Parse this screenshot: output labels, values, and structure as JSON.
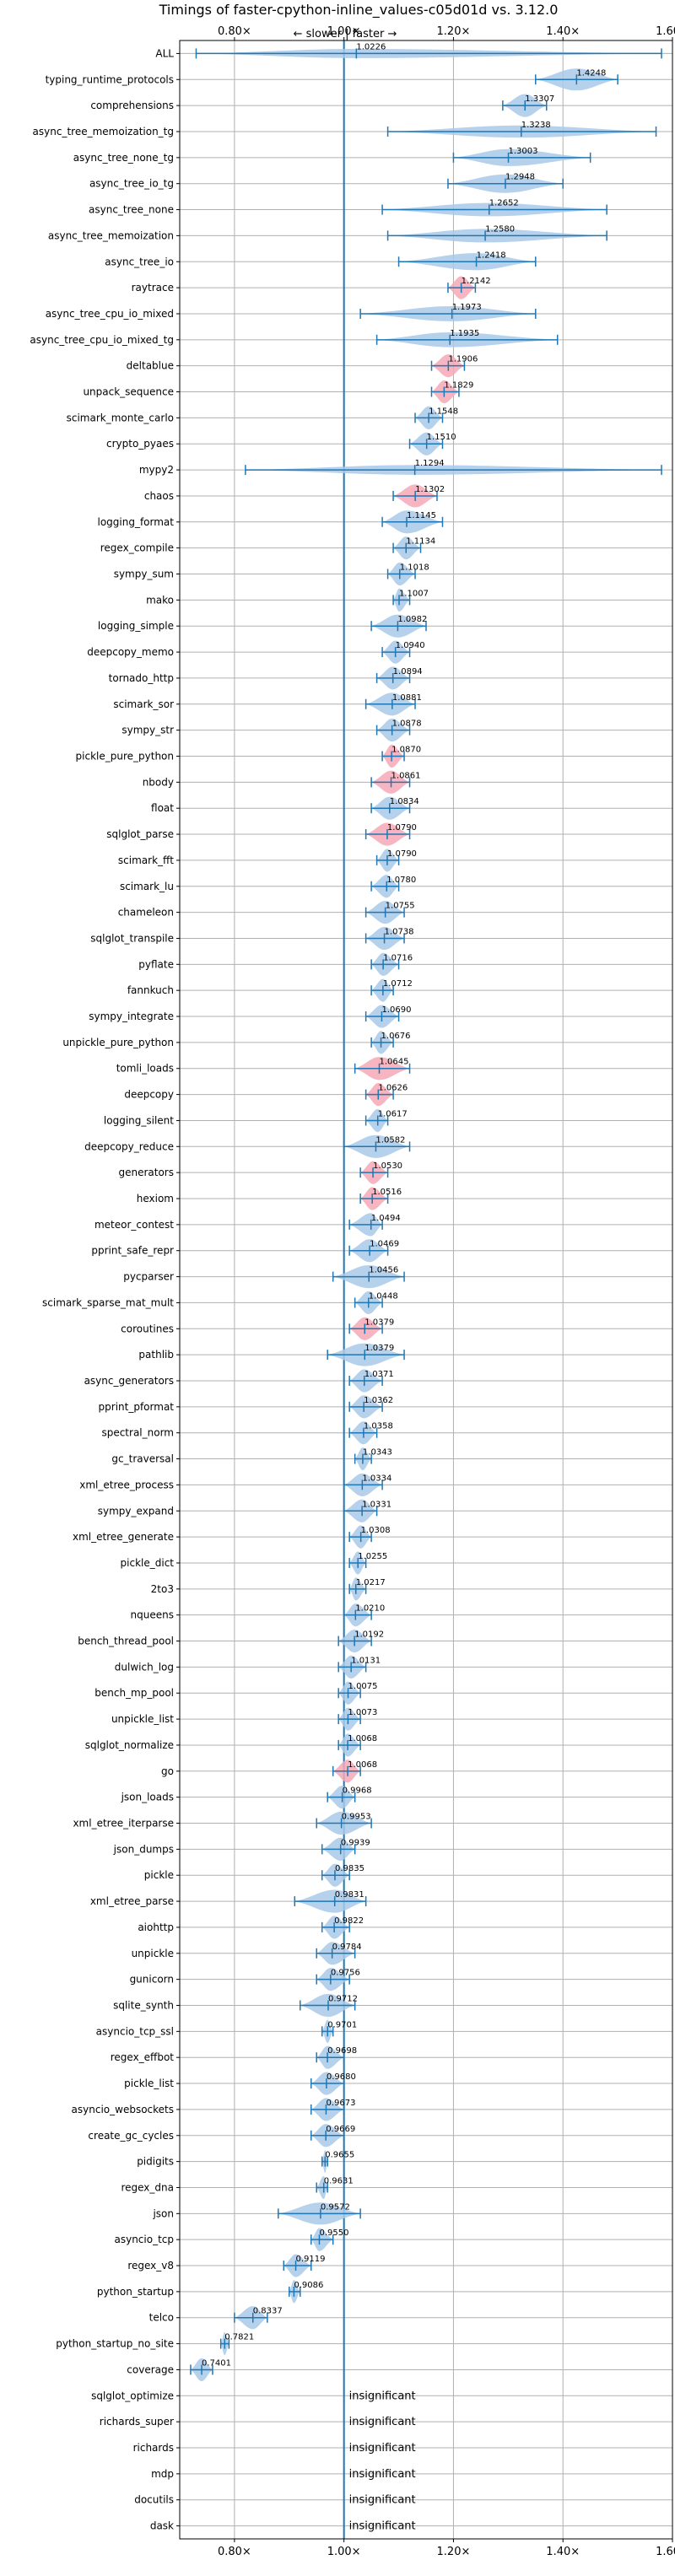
{
  "chart_data": {
    "type": "violin",
    "title": "Timings of faster-cpython-inline_values-c05d01d vs. 3.12.0",
    "direction_label": "← slower | faster →",
    "xlim": [
      0.7,
      1.6
    ],
    "xticks": [
      0.8,
      1.0,
      1.2,
      1.4,
      1.6
    ],
    "xtick_labels": [
      "0.80×",
      "1.00×",
      "1.20×",
      "1.40×",
      "1.60×"
    ],
    "grid": true,
    "reference_line": 1.0,
    "colors": {
      "violin": "#a9c9e8",
      "violin_highlight": "#f6a8b6",
      "whisker": "#1f77b4",
      "reference": "#1f77b4"
    },
    "insignificant_label": "insignificant",
    "benchmarks": [
      {
        "name": "ALL",
        "value": 1.0226,
        "label": "1.0226",
        "min": 0.73,
        "max": 1.58,
        "highlight": false
      },
      {
        "name": "typing_runtime_protocols",
        "value": 1.4248,
        "label": "1.4248",
        "min": 1.35,
        "max": 1.5,
        "highlight": false
      },
      {
        "name": "comprehensions",
        "value": 1.3307,
        "label": "1.3307",
        "min": 1.29,
        "max": 1.37,
        "highlight": false
      },
      {
        "name": "async_tree_memoization_tg",
        "value": 1.3238,
        "label": "1.3238",
        "min": 1.08,
        "max": 1.57,
        "highlight": false
      },
      {
        "name": "async_tree_none_tg",
        "value": 1.3003,
        "label": "1.3003",
        "min": 1.2,
        "max": 1.45,
        "highlight": false
      },
      {
        "name": "async_tree_io_tg",
        "value": 1.2948,
        "label": "1.2948",
        "min": 1.19,
        "max": 1.4,
        "highlight": false
      },
      {
        "name": "async_tree_none",
        "value": 1.2652,
        "label": "1.2652",
        "min": 1.07,
        "max": 1.48,
        "highlight": false
      },
      {
        "name": "async_tree_memoization",
        "value": 1.258,
        "label": "1.2580",
        "min": 1.08,
        "max": 1.48,
        "highlight": false
      },
      {
        "name": "async_tree_io",
        "value": 1.2418,
        "label": "1.2418",
        "min": 1.1,
        "max": 1.35,
        "highlight": false
      },
      {
        "name": "raytrace",
        "value": 1.2142,
        "label": "1.2142",
        "min": 1.19,
        "max": 1.24,
        "highlight": true
      },
      {
        "name": "async_tree_cpu_io_mixed",
        "value": 1.1973,
        "label": "1.1973",
        "min": 1.03,
        "max": 1.35,
        "highlight": false
      },
      {
        "name": "async_tree_cpu_io_mixed_tg",
        "value": 1.1935,
        "label": "1.1935",
        "min": 1.06,
        "max": 1.39,
        "highlight": false
      },
      {
        "name": "deltablue",
        "value": 1.1906,
        "label": "1.1906",
        "min": 1.16,
        "max": 1.22,
        "highlight": true
      },
      {
        "name": "unpack_sequence",
        "value": 1.1829,
        "label": "1.1829",
        "min": 1.16,
        "max": 1.21,
        "highlight": true
      },
      {
        "name": "scimark_monte_carlo",
        "value": 1.1548,
        "label": "1.1548",
        "min": 1.13,
        "max": 1.18,
        "highlight": false
      },
      {
        "name": "crypto_pyaes",
        "value": 1.151,
        "label": "1.1510",
        "min": 1.12,
        "max": 1.18,
        "highlight": false
      },
      {
        "name": "mypy2",
        "value": 1.1294,
        "label": "1.1294",
        "min": 0.82,
        "max": 1.58,
        "highlight": false
      },
      {
        "name": "chaos",
        "value": 1.1302,
        "label": "1.1302",
        "min": 1.09,
        "max": 1.17,
        "highlight": true
      },
      {
        "name": "logging_format",
        "value": 1.1145,
        "label": "1.1145",
        "min": 1.07,
        "max": 1.18,
        "highlight": false
      },
      {
        "name": "regex_compile",
        "value": 1.1134,
        "label": "1.1134",
        "min": 1.09,
        "max": 1.14,
        "highlight": false
      },
      {
        "name": "sympy_sum",
        "value": 1.1018,
        "label": "1.1018",
        "min": 1.08,
        "max": 1.13,
        "highlight": false
      },
      {
        "name": "mako",
        "value": 1.1007,
        "label": "1.1007",
        "min": 1.09,
        "max": 1.12,
        "highlight": false
      },
      {
        "name": "logging_simple",
        "value": 1.0982,
        "label": "1.0982",
        "min": 1.05,
        "max": 1.15,
        "highlight": false
      },
      {
        "name": "deepcopy_memo",
        "value": 1.094,
        "label": "1.0940",
        "min": 1.07,
        "max": 1.12,
        "highlight": false
      },
      {
        "name": "tornado_http",
        "value": 1.0894,
        "label": "1.0894",
        "min": 1.06,
        "max": 1.12,
        "highlight": false
      },
      {
        "name": "scimark_sor",
        "value": 1.0881,
        "label": "1.0881",
        "min": 1.04,
        "max": 1.13,
        "highlight": false
      },
      {
        "name": "sympy_str",
        "value": 1.0878,
        "label": "1.0878",
        "min": 1.06,
        "max": 1.12,
        "highlight": false
      },
      {
        "name": "pickle_pure_python",
        "value": 1.087,
        "label": "1.0870",
        "min": 1.07,
        "max": 1.11,
        "highlight": true
      },
      {
        "name": "nbody",
        "value": 1.0861,
        "label": "1.0861",
        "min": 1.05,
        "max": 1.12,
        "highlight": true
      },
      {
        "name": "float",
        "value": 1.0834,
        "label": "1.0834",
        "min": 1.05,
        "max": 1.12,
        "highlight": false
      },
      {
        "name": "sqlglot_parse",
        "value": 1.079,
        "label": "1.0790",
        "min": 1.04,
        "max": 1.12,
        "highlight": true
      },
      {
        "name": "scimark_fft",
        "value": 1.079,
        "label": "1.0790",
        "min": 1.06,
        "max": 1.1,
        "highlight": false
      },
      {
        "name": "scimark_lu",
        "value": 1.078,
        "label": "1.0780",
        "min": 1.05,
        "max": 1.1,
        "highlight": false
      },
      {
        "name": "chameleon",
        "value": 1.0755,
        "label": "1.0755",
        "min": 1.04,
        "max": 1.11,
        "highlight": false
      },
      {
        "name": "sqlglot_transpile",
        "value": 1.0738,
        "label": "1.0738",
        "min": 1.04,
        "max": 1.11,
        "highlight": false
      },
      {
        "name": "pyflate",
        "value": 1.0716,
        "label": "1.0716",
        "min": 1.05,
        "max": 1.1,
        "highlight": false
      },
      {
        "name": "fannkuch",
        "value": 1.0712,
        "label": "1.0712",
        "min": 1.05,
        "max": 1.09,
        "highlight": false
      },
      {
        "name": "sympy_integrate",
        "value": 1.069,
        "label": "1.0690",
        "min": 1.04,
        "max": 1.1,
        "highlight": false
      },
      {
        "name": "unpickle_pure_python",
        "value": 1.0676,
        "label": "1.0676",
        "min": 1.05,
        "max": 1.09,
        "highlight": false
      },
      {
        "name": "tomli_loads",
        "value": 1.0645,
        "label": "1.0645",
        "min": 1.02,
        "max": 1.12,
        "highlight": true
      },
      {
        "name": "deepcopy",
        "value": 1.0626,
        "label": "1.0626",
        "min": 1.04,
        "max": 1.09,
        "highlight": true
      },
      {
        "name": "logging_silent",
        "value": 1.0617,
        "label": "1.0617",
        "min": 1.04,
        "max": 1.08,
        "highlight": false
      },
      {
        "name": "deepcopy_reduce",
        "value": 1.0582,
        "label": "1.0582",
        "min": 1.0,
        "max": 1.12,
        "highlight": false
      },
      {
        "name": "generators",
        "value": 1.053,
        "label": "1.0530",
        "min": 1.03,
        "max": 1.08,
        "highlight": true
      },
      {
        "name": "hexiom",
        "value": 1.0516,
        "label": "1.0516",
        "min": 1.03,
        "max": 1.08,
        "highlight": true
      },
      {
        "name": "meteor_contest",
        "value": 1.0494,
        "label": "1.0494",
        "min": 1.01,
        "max": 1.07,
        "highlight": false
      },
      {
        "name": "pprint_safe_repr",
        "value": 1.0469,
        "label": "1.0469",
        "min": 1.01,
        "max": 1.08,
        "highlight": false
      },
      {
        "name": "pycparser",
        "value": 1.0456,
        "label": "1.0456",
        "min": 0.98,
        "max": 1.11,
        "highlight": false
      },
      {
        "name": "scimark_sparse_mat_mult",
        "value": 1.0448,
        "label": "1.0448",
        "min": 1.02,
        "max": 1.07,
        "highlight": false
      },
      {
        "name": "coroutines",
        "value": 1.0379,
        "label": "1.0379",
        "min": 1.01,
        "max": 1.07,
        "highlight": true
      },
      {
        "name": "pathlib",
        "value": 1.0379,
        "label": "1.0379",
        "min": 0.97,
        "max": 1.11,
        "highlight": false
      },
      {
        "name": "async_generators",
        "value": 1.0371,
        "label": "1.0371",
        "min": 1.01,
        "max": 1.07,
        "highlight": false
      },
      {
        "name": "pprint_pformat",
        "value": 1.0362,
        "label": "1.0362",
        "min": 1.01,
        "max": 1.07,
        "highlight": false
      },
      {
        "name": "spectral_norm",
        "value": 1.0358,
        "label": "1.0358",
        "min": 1.01,
        "max": 1.06,
        "highlight": false
      },
      {
        "name": "gc_traversal",
        "value": 1.0343,
        "label": "1.0343",
        "min": 1.02,
        "max": 1.05,
        "highlight": false
      },
      {
        "name": "xml_etree_process",
        "value": 1.0334,
        "label": "1.0334",
        "min": 1.0,
        "max": 1.07,
        "highlight": false
      },
      {
        "name": "sympy_expand",
        "value": 1.0331,
        "label": "1.0331",
        "min": 1.0,
        "max": 1.06,
        "highlight": false
      },
      {
        "name": "xml_etree_generate",
        "value": 1.0308,
        "label": "1.0308",
        "min": 1.01,
        "max": 1.05,
        "highlight": false
      },
      {
        "name": "pickle_dict",
        "value": 1.0255,
        "label": "1.0255",
        "min": 1.01,
        "max": 1.04,
        "highlight": false
      },
      {
        "name": "2to3",
        "value": 1.0217,
        "label": "1.0217",
        "min": 1.01,
        "max": 1.04,
        "highlight": false
      },
      {
        "name": "nqueens",
        "value": 1.021,
        "label": "1.0210",
        "min": 1.0,
        "max": 1.05,
        "highlight": false
      },
      {
        "name": "bench_thread_pool",
        "value": 1.0192,
        "label": "1.0192",
        "min": 0.99,
        "max": 1.05,
        "highlight": false
      },
      {
        "name": "dulwich_log",
        "value": 1.0131,
        "label": "1.0131",
        "min": 0.99,
        "max": 1.04,
        "highlight": false
      },
      {
        "name": "bench_mp_pool",
        "value": 1.0075,
        "label": "1.0075",
        "min": 0.99,
        "max": 1.03,
        "highlight": false
      },
      {
        "name": "unpickle_list",
        "value": 1.0073,
        "label": "1.0073",
        "min": 0.99,
        "max": 1.03,
        "highlight": false
      },
      {
        "name": "sqlglot_normalize",
        "value": 1.0068,
        "label": "1.0068",
        "min": 0.99,
        "max": 1.03,
        "highlight": false
      },
      {
        "name": "go",
        "value": 1.0068,
        "label": "1.0068",
        "min": 0.98,
        "max": 1.03,
        "highlight": true
      },
      {
        "name": "json_loads",
        "value": 0.9968,
        "label": "0.9968",
        "min": 0.97,
        "max": 1.02,
        "highlight": false
      },
      {
        "name": "xml_etree_iterparse",
        "value": 0.9953,
        "label": "0.9953",
        "min": 0.95,
        "max": 1.05,
        "highlight": false
      },
      {
        "name": "json_dumps",
        "value": 0.9939,
        "label": "0.9939",
        "min": 0.96,
        "max": 1.02,
        "highlight": false
      },
      {
        "name": "pickle",
        "value": 0.9835,
        "label": "0.9835",
        "min": 0.96,
        "max": 1.01,
        "highlight": false
      },
      {
        "name": "xml_etree_parse",
        "value": 0.9831,
        "label": "0.9831",
        "min": 0.91,
        "max": 1.04,
        "highlight": false
      },
      {
        "name": "aiohttp",
        "value": 0.9822,
        "label": "0.9822",
        "min": 0.96,
        "max": 1.01,
        "highlight": false
      },
      {
        "name": "unpickle",
        "value": 0.9784,
        "label": "0.9784",
        "min": 0.95,
        "max": 1.02,
        "highlight": false
      },
      {
        "name": "gunicorn",
        "value": 0.9756,
        "label": "0.9756",
        "min": 0.95,
        "max": 1.01,
        "highlight": false
      },
      {
        "name": "sqlite_synth",
        "value": 0.9712,
        "label": "0.9712",
        "min": 0.92,
        "max": 1.02,
        "highlight": false
      },
      {
        "name": "asyncio_tcp_ssl",
        "value": 0.9701,
        "label": "0.9701",
        "min": 0.96,
        "max": 0.98,
        "highlight": false
      },
      {
        "name": "regex_effbot",
        "value": 0.9698,
        "label": "0.9698",
        "min": 0.95,
        "max": 1.0,
        "highlight": false
      },
      {
        "name": "pickle_list",
        "value": 0.968,
        "label": "0.9680",
        "min": 0.94,
        "max": 1.0,
        "highlight": false
      },
      {
        "name": "asyncio_websockets",
        "value": 0.9673,
        "label": "0.9673",
        "min": 0.94,
        "max": 1.0,
        "highlight": false
      },
      {
        "name": "create_gc_cycles",
        "value": 0.9669,
        "label": "0.9669",
        "min": 0.94,
        "max": 1.0,
        "highlight": false
      },
      {
        "name": "pidigits",
        "value": 0.9655,
        "label": "0.9655",
        "min": 0.96,
        "max": 0.97,
        "highlight": false
      },
      {
        "name": "regex_dna",
        "value": 0.9631,
        "label": "0.9631",
        "min": 0.95,
        "max": 0.97,
        "highlight": false
      },
      {
        "name": "json",
        "value": 0.9572,
        "label": "0.9572",
        "min": 0.88,
        "max": 1.03,
        "highlight": false
      },
      {
        "name": "asyncio_tcp",
        "value": 0.955,
        "label": "0.9550",
        "min": 0.94,
        "max": 0.98,
        "highlight": false
      },
      {
        "name": "regex_v8",
        "value": 0.9119,
        "label": "0.9119",
        "min": 0.89,
        "max": 0.94,
        "highlight": false
      },
      {
        "name": "python_startup",
        "value": 0.9086,
        "label": "0.9086",
        "min": 0.9,
        "max": 0.92,
        "highlight": false
      },
      {
        "name": "telco",
        "value": 0.8337,
        "label": "0.8337",
        "min": 0.8,
        "max": 0.86,
        "highlight": false
      },
      {
        "name": "python_startup_no_site",
        "value": 0.7821,
        "label": "0.7821",
        "min": 0.775,
        "max": 0.79,
        "highlight": false
      },
      {
        "name": "coverage",
        "value": 0.7401,
        "label": "0.7401",
        "min": 0.72,
        "max": 0.76,
        "highlight": false
      },
      {
        "name": "sqlglot_optimize",
        "value": null,
        "label": "insignificant",
        "min": null,
        "max": null,
        "highlight": false
      },
      {
        "name": "richards_super",
        "value": null,
        "label": "insignificant",
        "min": null,
        "max": null,
        "highlight": false
      },
      {
        "name": "richards",
        "value": null,
        "label": "insignificant",
        "min": null,
        "max": null,
        "highlight": false
      },
      {
        "name": "mdp",
        "value": null,
        "label": "insignificant",
        "min": null,
        "max": null,
        "highlight": false
      },
      {
        "name": "docutils",
        "value": null,
        "label": "insignificant",
        "min": null,
        "max": null,
        "highlight": false
      },
      {
        "name": "dask",
        "value": null,
        "label": "insignificant",
        "min": null,
        "max": null,
        "highlight": false
      }
    ]
  }
}
